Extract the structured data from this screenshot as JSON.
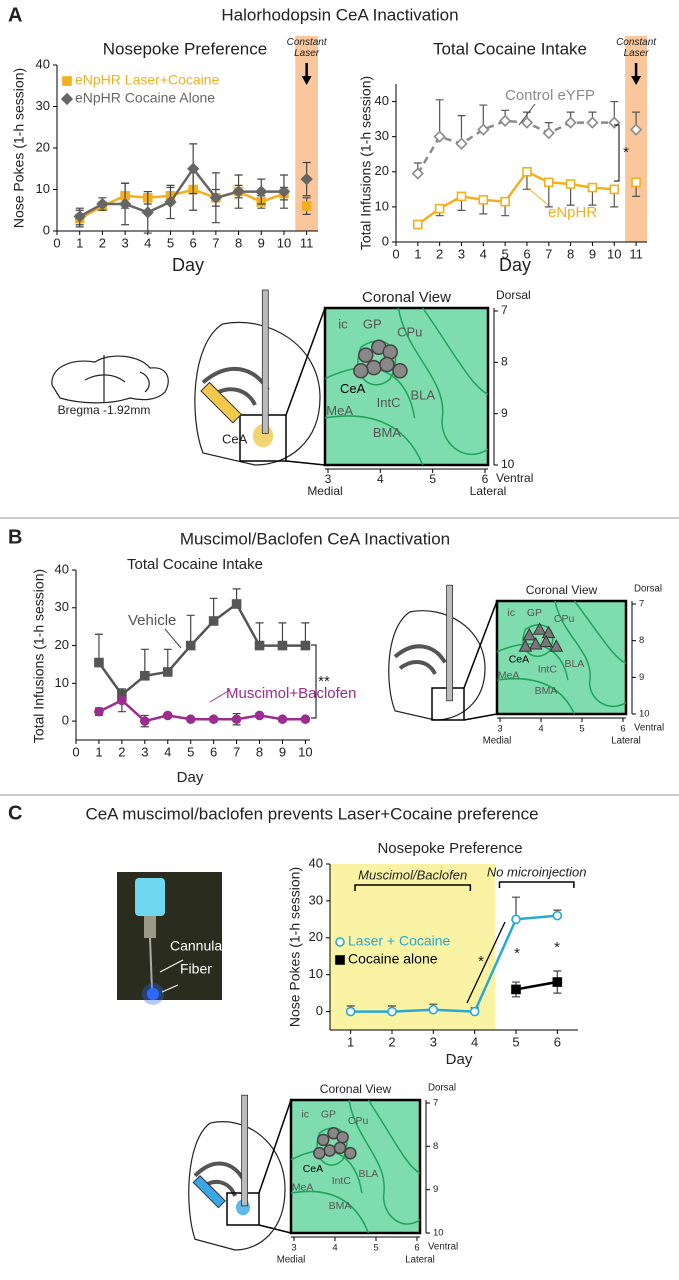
{
  "panels": [
    {
      "letter": "A",
      "title": "Halorhodopsin CeA Inactivation",
      "sagittal_label": "Bregma -1.92mm",
      "section_label": "CeA"
    },
    {
      "letter": "B",
      "title": "Muscimol/Baclofen CeA Inactivation"
    },
    {
      "letter": "C",
      "title": "CeA muscimol/baclofen prevents Laser+Cocaine preference",
      "photo_labels": [
        "Cannula",
        "Fiber"
      ]
    }
  ],
  "atlases": [
    {
      "title": "Coronal View",
      "regions": [
        "ic",
        "GP",
        "CPu",
        "CeA",
        "MeA",
        "IntC",
        "BLA",
        "BMA"
      ],
      "xticks": [
        3,
        4,
        5,
        6
      ],
      "yticks": [
        7,
        8,
        9,
        10
      ],
      "dorsal": "Dorsal",
      "ventral": "Ventral",
      "medial": "Medial",
      "lateral": "Lateral"
    },
    {
      "title": "Coronal View",
      "regions": [
        "ic",
        "GP",
        "CPu",
        "CeA",
        "MeA",
        "IntC",
        "BLA",
        "BMA"
      ],
      "xticks": [
        3,
        4,
        5,
        6
      ],
      "yticks": [
        7,
        8,
        9,
        10
      ],
      "dorsal": "Dorsal",
      "ventral": "Ventral",
      "medial": "Medial",
      "lateral": "Lateral"
    },
    {
      "title": "Coronal View",
      "regions": [
        "ic",
        "GP",
        "CPu",
        "CeA",
        "MeA",
        "IntC",
        "BLA",
        "BMA"
      ],
      "xticks": [
        3,
        4,
        5,
        6
      ],
      "yticks": [
        7,
        8,
        9,
        10
      ],
      "dorsal": "Dorsal",
      "ventral": "Ventral",
      "medial": "Medial",
      "lateral": "Lateral"
    }
  ],
  "chart_data": [
    {
      "type": "line",
      "title": "Nosepoke Preference",
      "x_label": "Day",
      "y_label": "Nose Pokes (1-h session)",
      "x": [
        1,
        2,
        3,
        4,
        5,
        6,
        7,
        8,
        9,
        10,
        11
      ],
      "xlim": [
        0,
        11.5
      ],
      "xticks": [
        0,
        1,
        2,
        3,
        4,
        5,
        6,
        7,
        8,
        9,
        10,
        11
      ],
      "ylim": [
        0,
        40
      ],
      "yticks": [
        0,
        10,
        20,
        30,
        40
      ],
      "legend": "top-left",
      "band": {
        "x": [
          10.5,
          11.5
        ],
        "color": "#f9c79b",
        "label": "Constant Laser",
        "label_style": "arrow",
        "break_line": true
      },
      "series": [
        {
          "name": "eNpHR Laser+Cocaine",
          "color": "#f2b01e",
          "marker": "square",
          "open": false,
          "dashed": false,
          "error_direction": "both",
          "values": [
            3,
            6,
            8.5,
            8,
            8.5,
            10,
            8,
            9.5,
            7,
            9,
            6
          ],
          "errors": [
            2,
            1,
            3,
            1.5,
            2,
            5,
            2,
            1.5,
            1.5,
            1.5,
            2
          ]
        },
        {
          "name": "eNpHR Cocaine Alone",
          "color": "#666666",
          "marker": "diamond",
          "open": false,
          "dashed": false,
          "error_direction": "both",
          "values": [
            3.5,
            6.5,
            6.5,
            4.5,
            7,
            15,
            8,
            9.5,
            9.5,
            9.5,
            12.5
          ],
          "errors": [
            2,
            1.5,
            5,
            5,
            4,
            6,
            6,
            4,
            3,
            4,
            4
          ]
        }
      ]
    },
    {
      "type": "line",
      "title": "Total Cocaine Intake",
      "x_label": "Day",
      "y_label": "Total Infusions (1-h session)",
      "x": [
        1,
        2,
        3,
        4,
        5,
        6,
        7,
        8,
        9,
        10,
        11
      ],
      "xlim": [
        0,
        11.5
      ],
      "xticks": [
        0,
        1,
        2,
        3,
        4,
        5,
        6,
        7,
        8,
        9,
        10,
        11
      ],
      "ylim": [
        0,
        45
      ],
      "yticks": [
        0,
        10,
        20,
        30,
        40
      ],
      "legend": "inline",
      "annotations": [
        "*"
      ],
      "band": {
        "x": [
          10.5,
          11.5
        ],
        "color": "#f9c79b",
        "label": "Constant Laser",
        "label_style": "arrow",
        "break_line": true
      },
      "series": [
        {
          "name": "Control eYFP",
          "color": "#8a8a8a",
          "marker": "diamond",
          "open": true,
          "dashed": true,
          "error_direction": "up",
          "values": [
            19.5,
            30,
            28,
            32,
            34.5,
            34,
            31,
            34,
            34,
            34,
            32
          ],
          "errors": [
            3,
            10.5,
            8,
            7,
            3,
            3,
            3,
            3,
            3,
            6,
            5
          ]
        },
        {
          "name": "eNpHR",
          "color": "#f2b01e",
          "marker": "square",
          "open": true,
          "dashed": false,
          "error_direction": "down",
          "values": [
            5,
            9.5,
            13,
            12,
            11.5,
            20,
            17,
            16.5,
            15.5,
            15,
            17
          ],
          "errors": [
            1,
            2,
            4,
            4,
            4,
            5,
            7,
            6,
            5,
            5,
            4
          ]
        }
      ]
    },
    {
      "type": "line",
      "title": "Total Cocaine Intake",
      "x_label": "Day",
      "y_label": "Total Infusions (1-h session)",
      "x": [
        1,
        2,
        3,
        4,
        5,
        6,
        7,
        8,
        9,
        10
      ],
      "xlim": [
        0,
        10.2
      ],
      "xticks": [
        0,
        1,
        2,
        3,
        4,
        5,
        6,
        7,
        8,
        9,
        10
      ],
      "ylim": [
        -5,
        40
      ],
      "yticks": [
        0,
        10,
        20,
        30,
        40
      ],
      "legend": "inline",
      "annotations": [
        "**"
      ],
      "series": [
        {
          "name": "Vehicle",
          "color": "#555555",
          "marker": "square",
          "open": false,
          "dashed": false,
          "error_direction": "up",
          "values": [
            15.5,
            7,
            12,
            13,
            20,
            26.5,
            31,
            20,
            20,
            20
          ],
          "errors": [
            7.5,
            1.5,
            7,
            6,
            8,
            6,
            4,
            6,
            6,
            6
          ]
        },
        {
          "name": "Muscimol+Baclofen",
          "color": "#9c2c8f",
          "marker": "circle",
          "open": false,
          "dashed": false,
          "error_direction": "both",
          "values": [
            2.5,
            5.5,
            0,
            1.5,
            0.5,
            0.5,
            0.5,
            1.5,
            0.5,
            0.5
          ],
          "errors": [
            1,
            3,
            1.5,
            0.5,
            0.5,
            0.5,
            1.5,
            0.5,
            0.5,
            0.5
          ]
        }
      ]
    },
    {
      "type": "line",
      "title": "Nosepoke Preference",
      "x_label": "Day",
      "y_label": "Nose Pokes (1-h session)",
      "x": [
        1,
        2,
        3,
        4,
        5,
        6
      ],
      "xlim": [
        0.5,
        6.5
      ],
      "xticks": [
        1,
        2,
        3,
        4,
        5,
        6
      ],
      "ylim": [
        -5,
        40
      ],
      "yticks": [
        0,
        10,
        20,
        30,
        40
      ],
      "legend": "center-left",
      "annotations": [
        "*",
        "*",
        "*"
      ],
      "band": {
        "x": [
          0.5,
          4.5
        ],
        "color": "#fbf3a4",
        "label": "Muscimol/Baclofen",
        "label_style": "bracket",
        "break_line": false
      },
      "bracket": {
        "x": [
          4.6,
          6.4
        ],
        "label": "No microinjection"
      },
      "series": [
        {
          "name": "Laser + Cocaine",
          "color": "#27a9d6",
          "marker": "circle",
          "open": true,
          "dashed": false,
          "error_direction": "up",
          "values": [
            0,
            0,
            0.5,
            0,
            25,
            26
          ],
          "errors": [
            1.5,
            1.5,
            1.5,
            1,
            6,
            1.5
          ]
        },
        {
          "name": "Cocaine alone",
          "color": "#000000",
          "marker": "square",
          "open": false,
          "dashed": false,
          "error_direction": "both",
          "values": [
            null,
            null,
            null,
            null,
            6,
            8
          ],
          "errors": [
            null,
            null,
            null,
            null,
            2,
            3
          ]
        }
      ]
    }
  ]
}
